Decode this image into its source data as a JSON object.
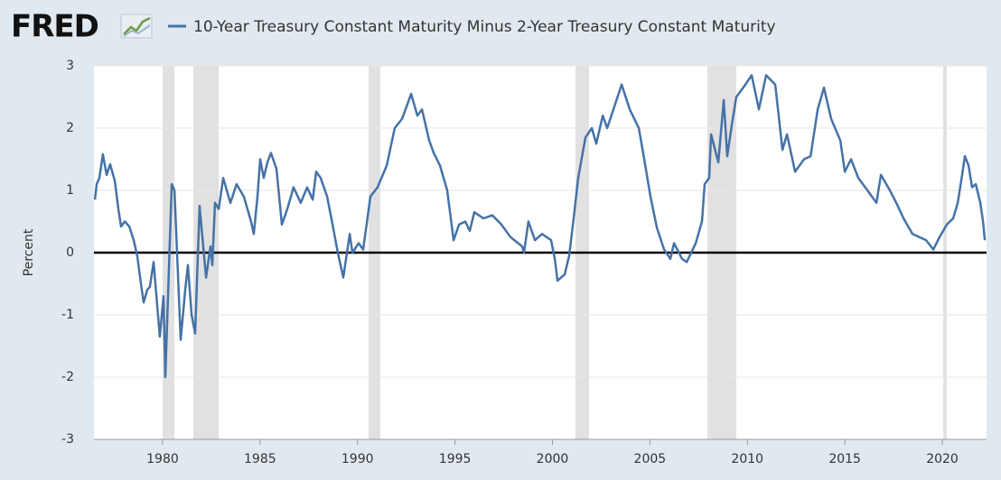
{
  "chart_data": {
    "type": "line",
    "source_logo": "FRED",
    "y_axis_label": "Percent",
    "series": [
      {
        "name": "10-Year Treasury Constant Maturity Minus 2-Year Treasury Constant Maturity",
        "color": "#4572a7",
        "x": [
          1976.53,
          1976.62,
          1976.76,
          1976.94,
          1977.13,
          1977.31,
          1977.55,
          1977.73,
          1977.87,
          1978.06,
          1978.29,
          1978.52,
          1978.7,
          1978.89,
          1979.03,
          1979.21,
          1979.35,
          1979.54,
          1979.86,
          1980.05,
          1980.14,
          1980.47,
          1980.61,
          1980.93,
          1981.16,
          1981.3,
          1981.49,
          1981.67,
          1981.9,
          1982.23,
          1982.46,
          1982.55,
          1982.69,
          1982.88,
          1983.11,
          1983.48,
          1983.8,
          1984.17,
          1984.54,
          1984.68,
          1984.87,
          1985.01,
          1985.19,
          1985.38,
          1985.56,
          1985.84,
          1986.12,
          1986.4,
          1986.72,
          1987.09,
          1987.42,
          1987.7,
          1987.88,
          1988.11,
          1988.44,
          1988.72,
          1988.99,
          1989.27,
          1989.6,
          1989.74,
          1990.06,
          1990.29,
          1990.66,
          1991.03,
          1991.5,
          1991.91,
          1992.29,
          1992.75,
          1993.07,
          1993.31,
          1993.68,
          1993.91,
          1994.23,
          1994.6,
          1994.93,
          1995.21,
          1995.53,
          1995.76,
          1995.99,
          1996.46,
          1996.92,
          1997.38,
          1997.85,
          1998.45,
          1998.54,
          1998.77,
          1999.1,
          1999.47,
          1999.93,
          2000.12,
          2000.26,
          2000.63,
          2000.86,
          2001.09,
          2001.32,
          2001.69,
          2002.02,
          2002.25,
          2002.58,
          2002.81,
          2003.18,
          2003.55,
          2003.97,
          2004.43,
          2004.71,
          2005.03,
          2005.36,
          2005.73,
          2006.05,
          2006.24,
          2006.65,
          2006.89,
          2007.12,
          2007.35,
          2007.67,
          2007.81,
          2008.04,
          2008.14,
          2008.51,
          2008.79,
          2008.97,
          2009.2,
          2009.43,
          2009.9,
          2010.22,
          2010.59,
          2010.96,
          2011.43,
          2011.8,
          2012.03,
          2012.45,
          2012.91,
          2013.24,
          2013.61,
          2013.93,
          2014.3,
          2014.77,
          2015.0,
          2015.32,
          2015.69,
          2016.16,
          2016.62,
          2016.85,
          2017.31,
          2017.64,
          2018.01,
          2018.47,
          2019.17,
          2019.54,
          2019.86,
          2020.23,
          2020.56,
          2020.79,
          2021.02,
          2021.16,
          2021.35,
          2021.53,
          2021.72,
          2021.95,
          2022.09,
          2022.18
        ],
        "values": [
          0.85,
          1.1,
          1.2,
          1.58,
          1.25,
          1.42,
          1.15,
          0.7,
          0.42,
          0.5,
          0.42,
          0.2,
          -0.05,
          -0.5,
          -0.8,
          -0.6,
          -0.55,
          -0.15,
          -1.35,
          -0.7,
          -2.0,
          1.1,
          1.0,
          -1.4,
          -0.6,
          -0.2,
          -1.0,
          -1.3,
          0.75,
          -0.4,
          0.1,
          -0.2,
          0.8,
          0.7,
          1.2,
          0.8,
          1.1,
          0.9,
          0.5,
          0.3,
          0.9,
          1.5,
          1.2,
          1.45,
          1.6,
          1.35,
          0.45,
          0.7,
          1.05,
          0.8,
          1.05,
          0.85,
          1.3,
          1.2,
          0.9,
          0.45,
          0.0,
          -0.4,
          0.3,
          0.0,
          0.15,
          0.05,
          0.9,
          1.05,
          1.4,
          2.0,
          2.15,
          2.55,
          2.2,
          2.3,
          1.8,
          1.6,
          1.4,
          1.0,
          0.2,
          0.45,
          0.5,
          0.35,
          0.65,
          0.55,
          0.6,
          0.45,
          0.25,
          0.1,
          0.0,
          0.5,
          0.2,
          0.3,
          0.2,
          -0.1,
          -0.45,
          -0.35,
          -0.05,
          0.55,
          1.2,
          1.85,
          2.0,
          1.75,
          2.2,
          2.0,
          2.35,
          2.7,
          2.3,
          2.0,
          1.5,
          0.9,
          0.4,
          0.05,
          -0.1,
          0.15,
          -0.1,
          -0.15,
          0.0,
          0.15,
          0.5,
          1.1,
          1.2,
          1.9,
          1.45,
          2.45,
          1.55,
          2.05,
          2.5,
          2.7,
          2.85,
          2.3,
          2.85,
          2.7,
          1.65,
          1.9,
          1.3,
          1.5,
          1.55,
          2.3,
          2.65,
          2.15,
          1.8,
          1.3,
          1.5,
          1.2,
          1.0,
          0.8,
          1.25,
          1.0,
          0.8,
          0.55,
          0.3,
          0.2,
          0.05,
          0.25,
          0.45,
          0.55,
          0.8,
          1.25,
          1.55,
          1.4,
          1.05,
          1.1,
          0.8,
          0.5,
          0.2
        ]
      }
    ],
    "recessions": [
      [
        1980.0,
        1980.61
      ],
      [
        1981.58,
        1982.88
      ],
      [
        1990.57,
        1991.17
      ],
      [
        2001.18,
        2001.88
      ],
      [
        2007.95,
        2009.43
      ],
      [
        2020.05,
        2020.23
      ]
    ],
    "xlim": [
      1976.48,
      2022.27
    ],
    "xticks": [
      1980,
      1985,
      1990,
      1995,
      2000,
      2005,
      2010,
      2015,
      2020
    ],
    "ylim": [
      -3,
      3
    ],
    "yticks": [
      -3,
      -2,
      -1,
      0,
      1,
      2,
      3
    ],
    "grid": true
  }
}
